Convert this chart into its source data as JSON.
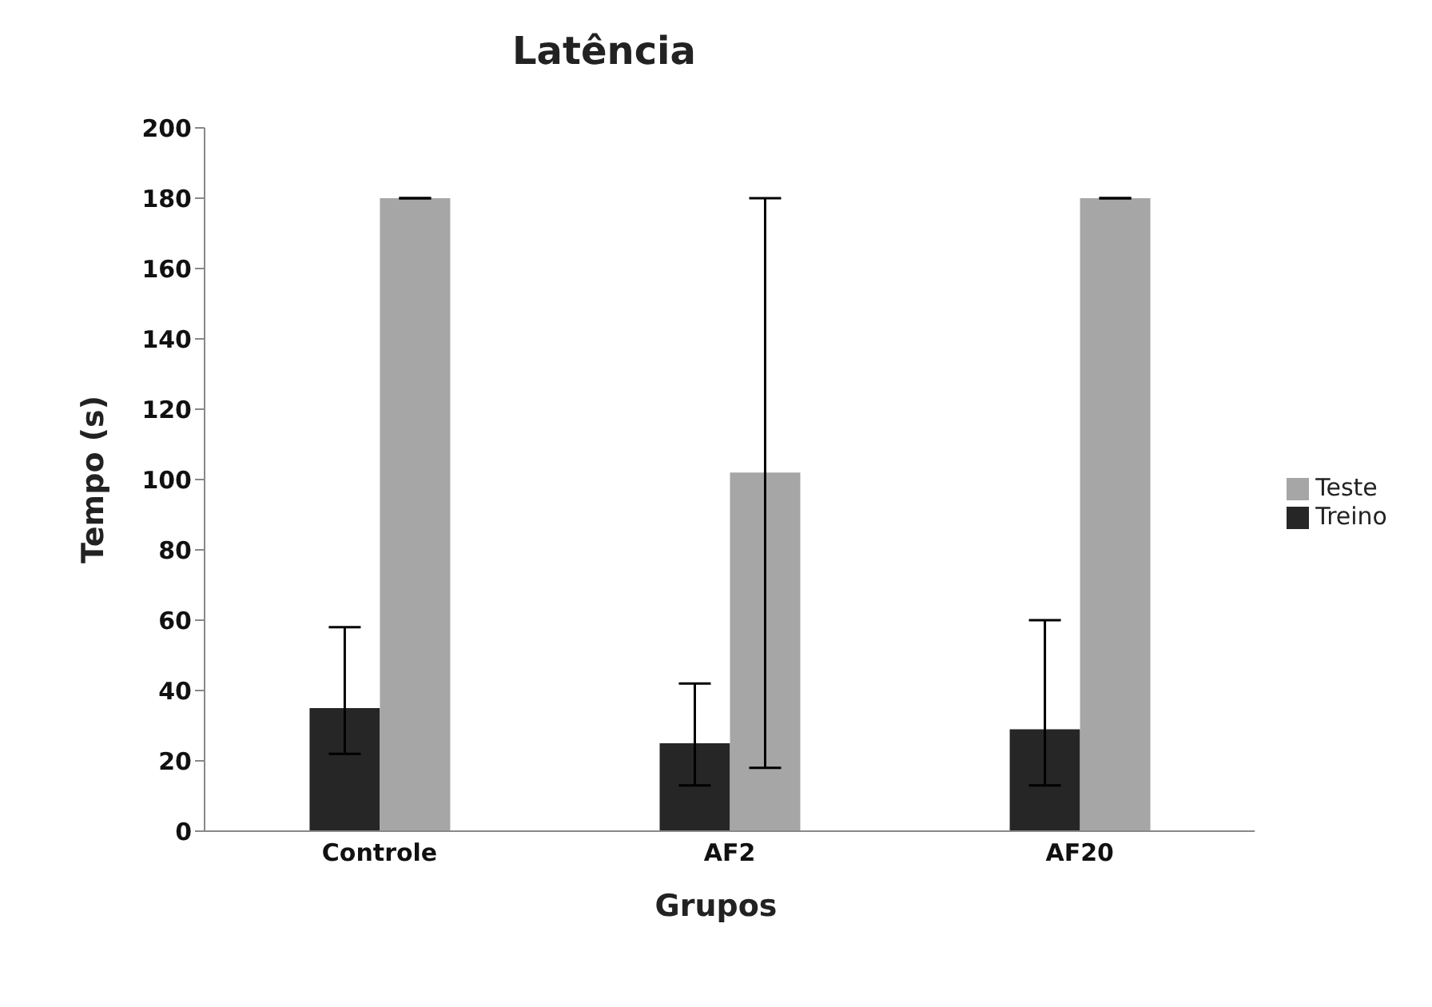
{
  "chart_data": {
    "type": "bar",
    "title": "Latência",
    "xlabel": "Grupos",
    "ylabel": "Tempo (s)",
    "categories": [
      "Controle",
      "AF2",
      "AF20"
    ],
    "series": [
      {
        "name": "Treino",
        "color": "#262626",
        "values": [
          35,
          25,
          29
        ],
        "errors": [
          [
            22,
            58
          ],
          [
            13,
            42
          ],
          [
            13,
            60
          ]
        ]
      },
      {
        "name": "Teste",
        "color": "#a6a6a6",
        "values": [
          180,
          102,
          180
        ],
        "errors": [
          [
            180,
            180
          ],
          [
            18,
            180
          ],
          [
            180,
            180
          ]
        ]
      }
    ],
    "ylim": [
      0,
      200
    ],
    "yticks": [
      0,
      20,
      40,
      60,
      80,
      100,
      120,
      140,
      160,
      180,
      200
    ],
    "grid": false,
    "legend": "right"
  }
}
